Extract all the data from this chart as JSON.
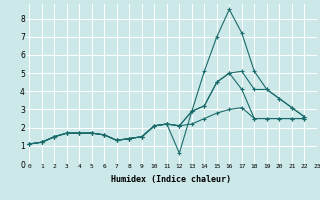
{
  "xlabel": "Humidex (Indice chaleur)",
  "bg_color": "#cce8e8",
  "grid_color": "#ffffff",
  "line_color": "#1a6b6b",
  "xlim": [
    -0.3,
    23
  ],
  "ylim": [
    0,
    8.8
  ],
  "xticks": [
    0,
    1,
    2,
    3,
    4,
    5,
    6,
    7,
    8,
    9,
    10,
    11,
    12,
    13,
    14,
    15,
    16,
    17,
    18,
    19,
    20,
    21,
    22,
    23
  ],
  "yticks": [
    0,
    1,
    2,
    3,
    4,
    5,
    6,
    7,
    8
  ],
  "series_x": [
    0,
    1,
    2,
    3,
    4,
    5,
    6,
    7,
    8,
    9,
    10,
    11,
    12,
    13,
    14,
    15,
    16,
    17,
    18,
    19,
    20,
    21,
    22
  ],
  "series": [
    [
      1.1,
      1.2,
      1.5,
      1.7,
      1.7,
      1.7,
      1.6,
      1.3,
      1.4,
      1.5,
      2.1,
      2.2,
      2.1,
      2.9,
      5.1,
      7.0,
      8.5,
      7.2,
      5.1,
      4.1,
      3.6,
      3.1,
      2.6
    ],
    [
      1.1,
      1.2,
      1.5,
      1.7,
      1.7,
      1.7,
      1.6,
      1.3,
      1.4,
      1.5,
      2.1,
      2.2,
      0.6,
      2.9,
      3.2,
      4.5,
      5.0,
      5.1,
      4.1,
      4.1,
      3.6,
      3.1,
      2.6
    ],
    [
      1.1,
      1.2,
      1.5,
      1.7,
      1.7,
      1.7,
      1.6,
      1.3,
      1.4,
      1.5,
      2.1,
      2.2,
      2.1,
      2.9,
      3.2,
      4.5,
      5.0,
      4.1,
      2.5,
      2.5,
      2.5,
      2.5,
      2.5
    ],
    [
      1.1,
      1.2,
      1.5,
      1.7,
      1.7,
      1.7,
      1.6,
      1.3,
      1.4,
      1.5,
      2.1,
      2.2,
      2.1,
      2.2,
      2.5,
      2.8,
      3.0,
      3.1,
      2.5,
      2.5,
      2.5,
      2.5,
      2.5
    ]
  ]
}
